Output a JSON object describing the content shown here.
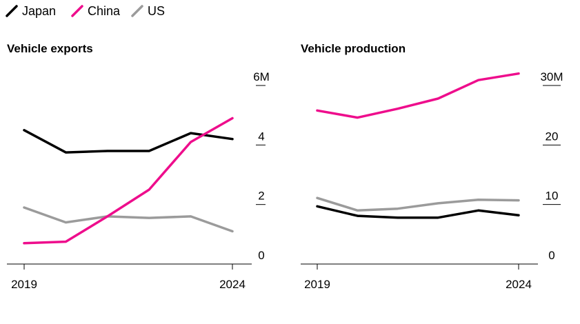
{
  "legend": [
    {
      "name": "Japan",
      "color": "#000000"
    },
    {
      "name": "China",
      "color": "#ee0d8c"
    },
    {
      "name": "US",
      "color": "#9b9b9b"
    }
  ],
  "chart_data": [
    {
      "type": "line",
      "title": "Vehicle exports",
      "x": [
        2019,
        2020,
        2021,
        2022,
        2023,
        2024
      ],
      "x_tick_labels": [
        "2019",
        "2024"
      ],
      "y_tick_labels": [
        "0",
        "2",
        "4",
        "6M"
      ],
      "y_ticks": [
        0,
        2,
        4,
        6
      ],
      "ylim": [
        0,
        6
      ],
      "xlabel": "",
      "ylabel": "",
      "series": [
        {
          "name": "Japan",
          "color": "#000000",
          "values": [
            4.5,
            3.75,
            3.8,
            3.8,
            4.4,
            4.2
          ]
        },
        {
          "name": "China",
          "color": "#ee0d8c",
          "values": [
            0.7,
            0.75,
            1.6,
            2.5,
            4.1,
            4.9
          ]
        },
        {
          "name": "US",
          "color": "#9b9b9b",
          "values": [
            1.9,
            1.4,
            1.6,
            1.55,
            1.6,
            1.1
          ]
        }
      ]
    },
    {
      "type": "line",
      "title": "Vehicle production",
      "x": [
        2019,
        2020,
        2021,
        2022,
        2023,
        2024
      ],
      "x_tick_labels": [
        "2019",
        "2024"
      ],
      "y_tick_labels": [
        "0",
        "10",
        "20",
        "30M"
      ],
      "y_ticks": [
        0,
        10,
        20,
        30
      ],
      "ylim": [
        0,
        30
      ],
      "xlabel": "",
      "ylabel": "",
      "series": [
        {
          "name": "Japan",
          "color": "#000000",
          "values": [
            9.7,
            8.1,
            7.8,
            7.8,
            9.0,
            8.2
          ]
        },
        {
          "name": "China",
          "color": "#ee0d8c",
          "values": [
            25.8,
            24.6,
            26.1,
            27.8,
            30.9,
            32.0
          ]
        },
        {
          "name": "US",
          "color": "#9b9b9b",
          "values": [
            11.1,
            9.0,
            9.3,
            10.2,
            10.8,
            10.7
          ]
        }
      ]
    }
  ]
}
